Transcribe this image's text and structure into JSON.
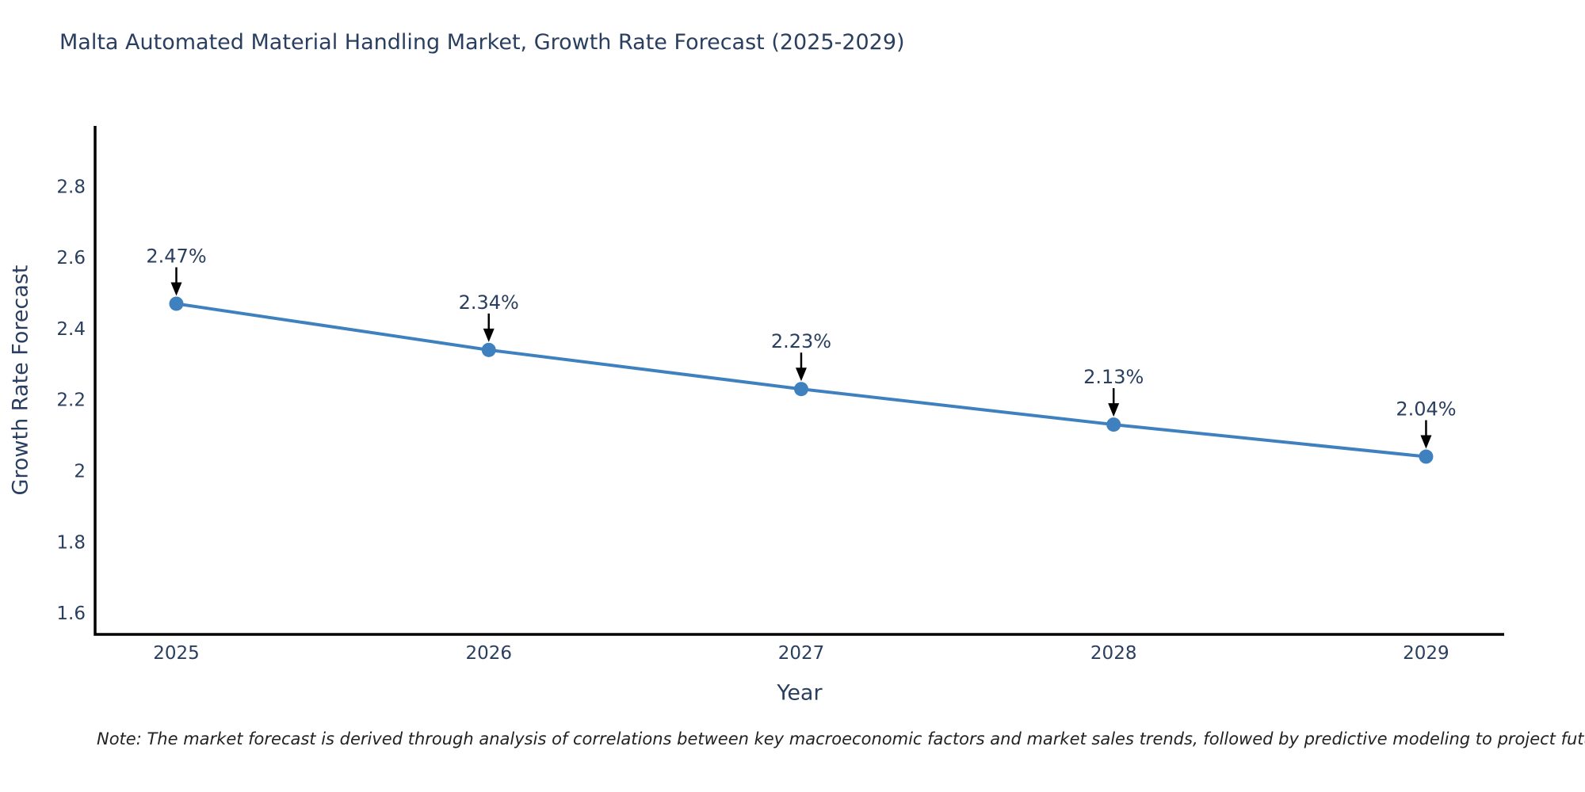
{
  "figure": {
    "note": "Note: The market forecast is derived through analysis of correlations between key macroeconomic factors and market sales trends, followed by predictive modeling to project future sales"
  },
  "chart_data": {
    "type": "line",
    "title": "Malta Automated Material Handling Market, Growth Rate Forecast (2025-2029)",
    "xlabel": "Year",
    "ylabel": "Growth Rate Forecast",
    "x": [
      2025,
      2026,
      2027,
      2028,
      2029
    ],
    "values": [
      2.47,
      2.34,
      2.23,
      2.13,
      2.04
    ],
    "point_labels": [
      "2.47%",
      "2.34%",
      "2.23%",
      "2.13%",
      "2.04%"
    ],
    "xtick_labels": [
      "2025",
      "2026",
      "2027",
      "2028",
      "2029"
    ],
    "yticks": [
      1.6,
      1.8,
      2,
      2.2,
      2.4,
      2.6,
      2.8
    ],
    "ytick_labels": [
      "1.6",
      "1.8",
      "2",
      "2.2",
      "2.4",
      "2.6",
      "2.8"
    ],
    "xlim": [
      2024.74,
      2029.25
    ],
    "ylim": [
      1.54,
      2.97
    ],
    "grid": false,
    "legend": false,
    "line_color": "#3f81be",
    "marker_color": "#3f81be",
    "axis_color": "#000000",
    "arrow_color": "#000000",
    "tick_text_color": "#2a3f5f",
    "annotation_text_color": "#2a3f5f",
    "background": "#ffffff"
  }
}
